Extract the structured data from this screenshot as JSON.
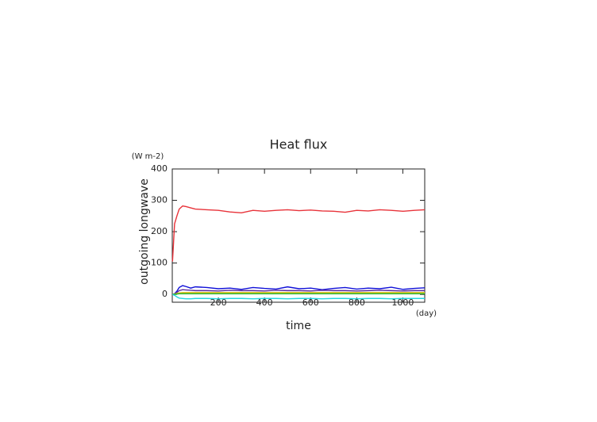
{
  "chart_data": {
    "type": "line",
    "title": "Heat flux",
    "xlabel": "time",
    "xunit": "(day)",
    "ylabel": "outgoing longwave",
    "yunit": "(W m-2)",
    "x": [
      1,
      10,
      20,
      30,
      45,
      60,
      80,
      100,
      150,
      200,
      250,
      300,
      350,
      400,
      450,
      500,
      550,
      600,
      650,
      700,
      750,
      800,
      850,
      900,
      950,
      1000,
      1050,
      1095
    ],
    "series": [
      {
        "color": "#e8333a",
        "values": [
          105,
          225,
          250,
          272,
          282,
          280,
          276,
          272,
          270,
          268,
          263,
          260,
          268,
          265,
          268,
          270,
          267,
          269,
          266,
          265,
          262,
          268,
          266,
          270,
          268,
          265,
          268,
          270
        ]
      },
      {
        "color": "#1010d8",
        "values": [
          0,
          2,
          10,
          22,
          28,
          25,
          20,
          24,
          22,
          18,
          20,
          16,
          22,
          19,
          17,
          24,
          18,
          20,
          15,
          19,
          22,
          17,
          20,
          18,
          23,
          16,
          19,
          21
        ]
      },
      {
        "color": "#5a2aa0",
        "values": [
          0,
          1,
          6,
          12,
          15,
          14,
          13,
          12,
          12,
          11,
          13,
          12,
          12,
          11,
          13,
          12,
          12,
          11,
          13,
          12,
          12,
          11,
          12,
          13,
          12,
          11,
          12,
          12
        ]
      },
      {
        "color": "#e0c020",
        "values": [
          0,
          1,
          3,
          5,
          6,
          6,
          6,
          6,
          6,
          6,
          6,
          6,
          6,
          6,
          6,
          6,
          6,
          6,
          6,
          6,
          6,
          6,
          6,
          6,
          6,
          6,
          6,
          6
        ]
      },
      {
        "color": "#20b020",
        "values": [
          0,
          0,
          1,
          2,
          2,
          2,
          2,
          2,
          2,
          2,
          2,
          2,
          2,
          2,
          2,
          2,
          2,
          2,
          2,
          2,
          2,
          2,
          2,
          2,
          2,
          2,
          2,
          2
        ]
      },
      {
        "color": "#20d8e0",
        "values": [
          0,
          -3,
          -8,
          -12,
          -13,
          -14,
          -14,
          -13,
          -13,
          -14,
          -13,
          -13,
          -14,
          -13,
          -13,
          -14,
          -13,
          -13,
          -14,
          -13,
          -13,
          -14,
          -13,
          -13,
          -14,
          -13,
          -13,
          -13
        ]
      }
    ],
    "xlim": [
      0,
      1095
    ],
    "ylim": [
      -25,
      400
    ],
    "xticks": [
      200,
      400,
      600,
      800,
      1000
    ],
    "yticks": [
      0,
      100,
      200,
      300,
      400
    ]
  }
}
